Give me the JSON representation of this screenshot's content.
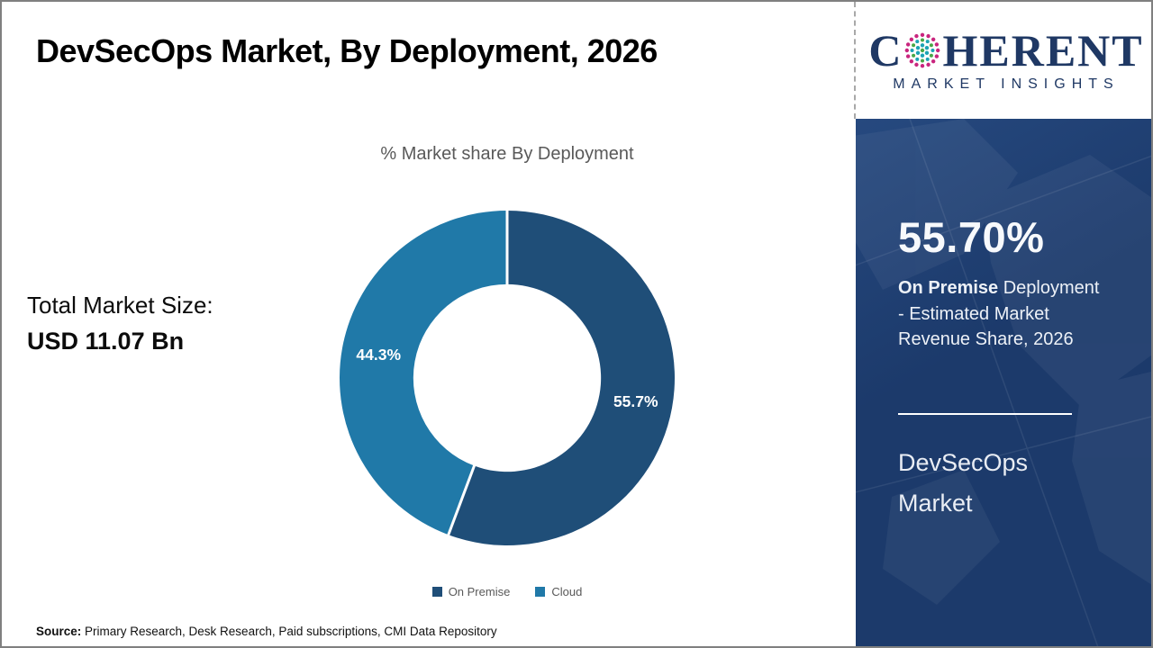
{
  "header": {
    "title": "DevSecOps Market, By Deployment, 2026"
  },
  "logo": {
    "brand_prefix": "C",
    "brand_suffix": "HERENT",
    "tagline": "MARKET INSIGHTS"
  },
  "chart_data": {
    "type": "pie",
    "subtype": "donut",
    "title": "% Market share By Deployment",
    "labels": [
      "On Premise",
      "Cloud"
    ],
    "values": [
      55.7,
      44.3
    ],
    "data_labels": [
      "55.7%",
      "44.3%"
    ],
    "colors": [
      "#1F4E78",
      "#2079A8"
    ],
    "start_angle_deg": 0,
    "direction": "clockwise",
    "inner_radius_ratio": 0.56,
    "legend_position": "bottom",
    "separator_color": "#ffffff"
  },
  "left_panel": {
    "total_label": "Total Market Size:",
    "total_value": "USD 11.07 Bn"
  },
  "sidebar": {
    "stat_value": "55.70%",
    "stat_bold": "On Premise",
    "stat_rest": " Deployment - Estimated Market Revenue Share, 2026",
    "market_name_line1": "DevSecOps",
    "market_name_line2": "Market"
  },
  "footer": {
    "source_label": "Source:",
    "source_text": " Primary Research, Desk Research, Paid subscriptions, CMI Data Repository"
  },
  "theme": {
    "panel_navy": "#1C3A6B",
    "logo_navy": "#1F3864",
    "dark_blue": "#1F4E78",
    "light_blue": "#2079A8",
    "text_gray": "#595959",
    "globe_magenta": "#C9257E",
    "globe_teal": "#1BA3B4",
    "globe_green": "#48A746"
  }
}
